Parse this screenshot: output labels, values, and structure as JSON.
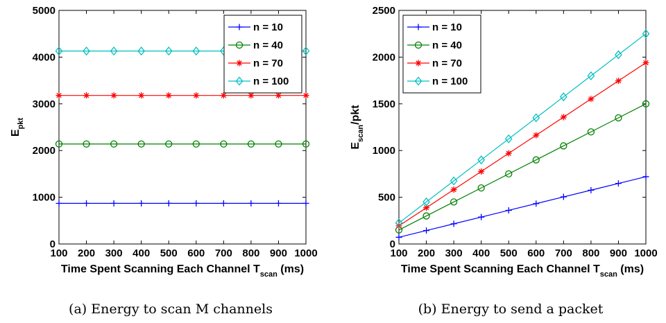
{
  "chart_data": [
    {
      "type": "line",
      "xlabel": "Time Spent Scanning Each Channel T",
      "xlabel_sub": "scan",
      "xlabel_unit": " (ms)",
      "ylabel": "E",
      "ylabel_sub": "pkt",
      "ylabel_suffix": "",
      "x": [
        100,
        200,
        300,
        400,
        500,
        600,
        700,
        800,
        900,
        1000
      ],
      "xlim": [
        100,
        1000
      ],
      "ylim": [
        0,
        5000
      ],
      "xticks": [
        "100",
        "200",
        "300",
        "400",
        "500",
        "600",
        "700",
        "800",
        "900",
        "1000"
      ],
      "yticks": [
        "0",
        "1000",
        "2000",
        "3000",
        "4000",
        "5000"
      ],
      "legend_position": "top-right",
      "series": [
        {
          "name": "n = 10",
          "color": "#0000ff",
          "marker": "plus",
          "values": [
            870,
            870,
            870,
            870,
            870,
            870,
            870,
            870,
            870,
            870
          ]
        },
        {
          "name": "n = 40",
          "color": "#008000",
          "marker": "circle",
          "values": [
            2140,
            2140,
            2140,
            2140,
            2140,
            2140,
            2140,
            2140,
            2140,
            2140
          ]
        },
        {
          "name": "n = 70",
          "color": "#ff0000",
          "marker": "star",
          "values": [
            3180,
            3180,
            3180,
            3180,
            3180,
            3180,
            3180,
            3180,
            3180,
            3180
          ]
        },
        {
          "name": "n = 100",
          "color": "#00bfbf",
          "marker": "diamond",
          "values": [
            4130,
            4130,
            4130,
            4130,
            4130,
            4130,
            4130,
            4130,
            4130,
            4130
          ]
        }
      ],
      "caption": "(a) Energy to scan M channels"
    },
    {
      "type": "line",
      "xlabel": "Time Spent Scanning Each Channel T",
      "xlabel_sub": "scan",
      "xlabel_unit": " (ms)",
      "ylabel": "E",
      "ylabel_sub": "scan",
      "ylabel_suffix": "/pkt",
      "x": [
        100,
        200,
        300,
        400,
        500,
        600,
        700,
        800,
        900,
        1000
      ],
      "xlim": [
        100,
        1000
      ],
      "ylim": [
        0,
        2500
      ],
      "xticks": [
        "100",
        "200",
        "300",
        "400",
        "500",
        "600",
        "700",
        "800",
        "900",
        "1000"
      ],
      "yticks": [
        "0",
        "500",
        "1000",
        "1500",
        "2000",
        "2500"
      ],
      "legend_position": "top-left",
      "series": [
        {
          "name": "n = 10",
          "color": "#0000ff",
          "marker": "plus",
          "values": [
            72,
            144,
            216,
            288,
            360,
            432,
            504,
            576,
            648,
            720
          ]
        },
        {
          "name": "n = 40",
          "color": "#008000",
          "marker": "circle",
          "values": [
            150,
            300,
            450,
            600,
            750,
            900,
            1050,
            1200,
            1350,
            1500
          ]
        },
        {
          "name": "n = 70",
          "color": "#ff0000",
          "marker": "star",
          "values": [
            194,
            388,
            582,
            776,
            970,
            1164,
            1358,
            1552,
            1746,
            1940
          ]
        },
        {
          "name": "n = 100",
          "color": "#00bfbf",
          "marker": "diamond",
          "values": [
            225,
            450,
            675,
            900,
            1125,
            1350,
            1575,
            1800,
            2025,
            2250
          ]
        }
      ],
      "caption": "(b) Energy to send a packet"
    }
  ]
}
